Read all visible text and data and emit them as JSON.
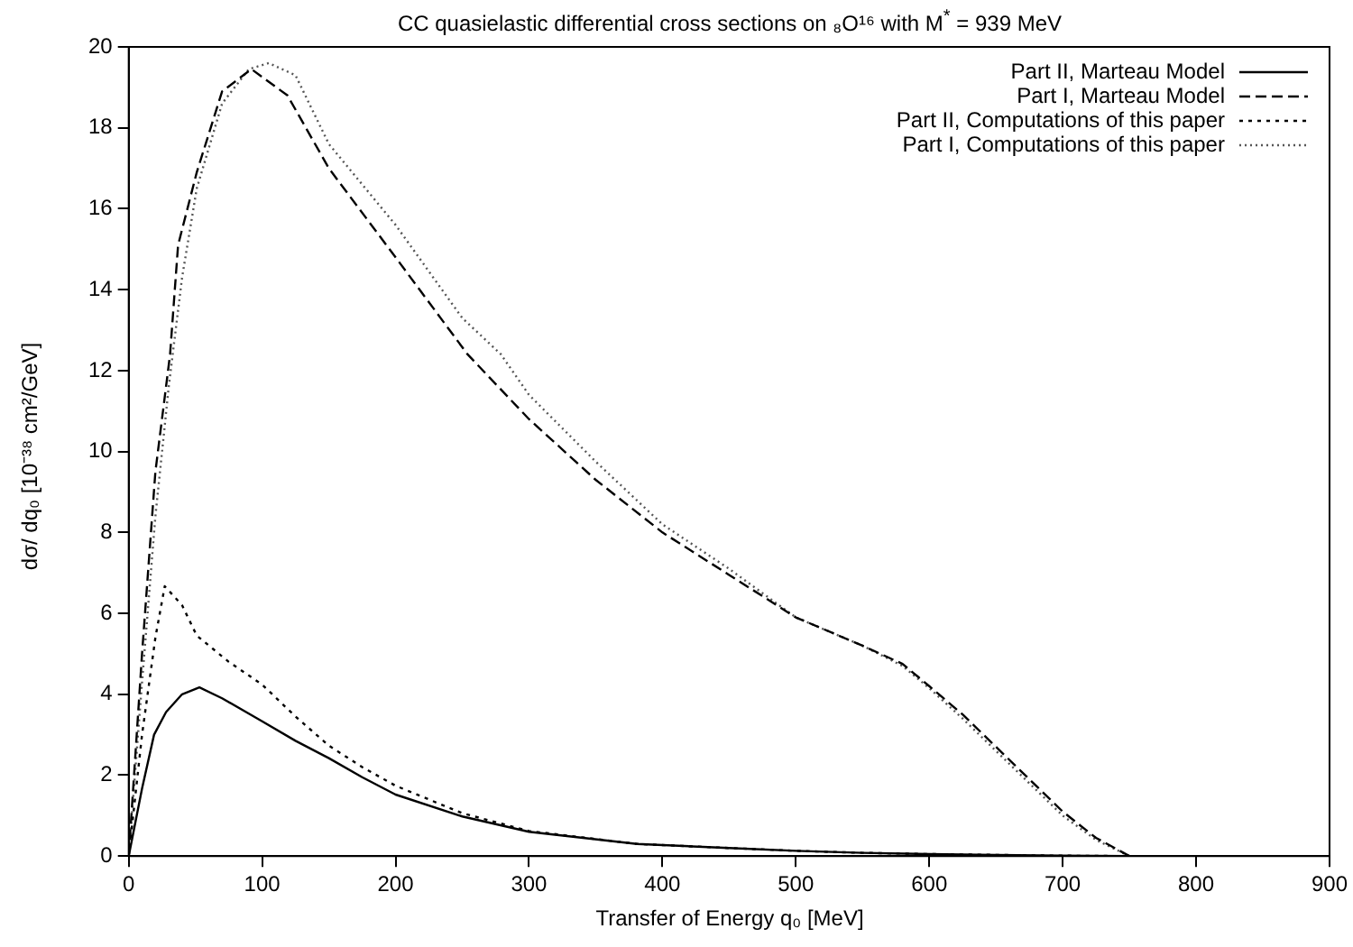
{
  "chart_data": {
    "type": "line",
    "title": "CC quasielastic differential cross sections on ₈O¹⁶ with M$^{*}$ = 939 MeV",
    "xlabel": "Transfer of Energy q₀ [MeV]",
    "ylabel": "dσ/ dq₀ [10⁻³⁸ cm²/GeV]",
    "xlim": [
      0,
      900
    ],
    "xticks": [
      0,
      100,
      200,
      300,
      400,
      500,
      600,
      700,
      800,
      900
    ],
    "ylim": [
      0,
      20
    ],
    "yticks": [
      0,
      2,
      4,
      6,
      8,
      10,
      12,
      14,
      16,
      18,
      20
    ],
    "grid": false,
    "legend": "top right",
    "marker": "none",
    "series": [
      {
        "name": "Part II, Marteau Model",
        "color": "#000000",
        "line_style": "solid",
        "x": [
          0,
          10,
          19,
          28,
          40,
          53,
          70,
          100,
          125,
          150,
          175,
          200,
          250,
          300,
          381,
          450,
          500,
          550,
          600,
          650,
          700,
          750
        ],
        "values": [
          0,
          1.67,
          3.0,
          3.56,
          4.0,
          4.17,
          3.9,
          3.33,
          2.85,
          2.42,
          1.95,
          1.52,
          0.98,
          0.6,
          0.3,
          0.2,
          0.13,
          0.08,
          0.05,
          0.03,
          0.01,
          0
        ]
      },
      {
        "name": "Part I, Marteau Model",
        "color": "#000000",
        "line_style": "dashed",
        "x": [
          0,
          10,
          20,
          31,
          37,
          51,
          70,
          92,
          119,
          150,
          200,
          254,
          300,
          350,
          400,
          450,
          500,
          550,
          580,
          600,
          625,
          650,
          675,
          700,
          725,
          750
        ],
        "values": [
          0,
          5.0,
          9.5,
          12.4,
          15.1,
          16.9,
          18.9,
          19.45,
          18.8,
          17.0,
          14.8,
          12.4,
          10.8,
          9.3,
          8.0,
          6.95,
          5.9,
          5.2,
          4.75,
          4.2,
          3.5,
          2.7,
          1.9,
          1.1,
          0.45,
          0
        ]
      },
      {
        "name": "Part II, Computations of this paper",
        "color": "#000000",
        "line_style": "dotted",
        "x": [
          0,
          10,
          20,
          27,
          40,
          51,
          75,
          100,
          125,
          150,
          175,
          200,
          250,
          300,
          381,
          450,
          500,
          550,
          600,
          650,
          700,
          750
        ],
        "values": [
          0,
          3.0,
          5.4,
          6.67,
          6.2,
          5.45,
          4.8,
          4.24,
          3.45,
          2.73,
          2.2,
          1.74,
          1.06,
          0.62,
          0.3,
          0.2,
          0.13,
          0.08,
          0.05,
          0.03,
          0.01,
          0
        ]
      },
      {
        "name": "Part I, Computations of this paper",
        "color": "#555555",
        "line_style": "dotted",
        "x": [
          0,
          10,
          20,
          30,
          40,
          51,
          70,
          90,
          105,
          125,
          150,
          200,
          250,
          279,
          300,
          350,
          400,
          450,
          500,
          550,
          580,
          600,
          625,
          650,
          675,
          700,
          725,
          750
        ],
        "values": [
          0,
          4.3,
          8.4,
          11.6,
          14.3,
          16.5,
          18.6,
          19.45,
          19.6,
          19.3,
          17.6,
          15.6,
          13.3,
          12.4,
          11.4,
          9.75,
          8.2,
          7.1,
          5.9,
          5.2,
          4.7,
          4.15,
          3.4,
          2.6,
          1.8,
          1.0,
          0.4,
          0
        ]
      }
    ]
  }
}
